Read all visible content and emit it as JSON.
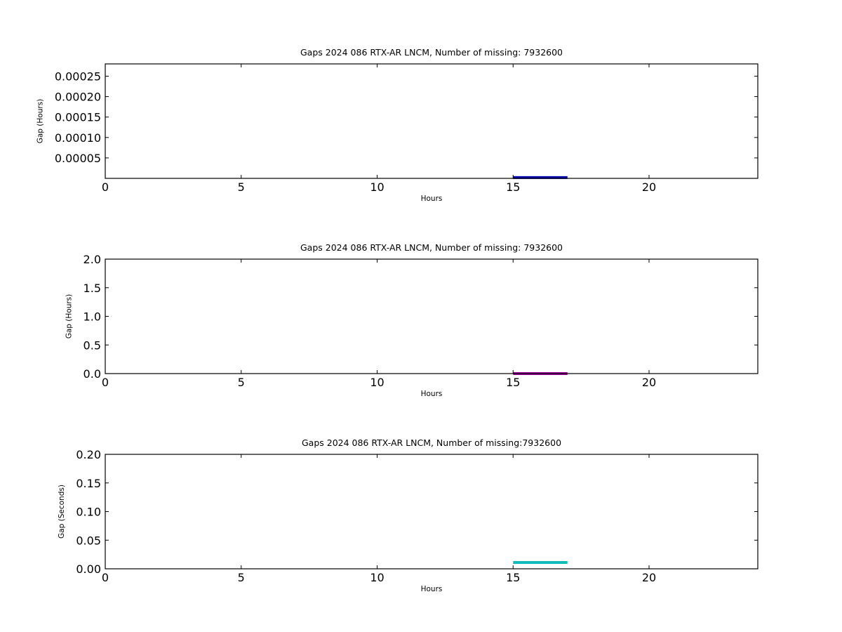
{
  "chart_data": [
    {
      "type": "line",
      "title": "Gaps 2024 086 RTX-AR  LNCM, Number of missing: 7932600",
      "xlabel": "Hours",
      "ylabel": "Gap (Hours)",
      "xlim": [
        0,
        24
      ],
      "ylim": [
        0,
        0.00028
      ],
      "xticks": [
        0,
        5,
        10,
        15,
        20
      ],
      "xtick_labels": [
        "0",
        "5",
        "10",
        "15",
        "20"
      ],
      "yticks": [
        5e-05,
        0.0001,
        0.00015,
        0.0002,
        0.00025
      ],
      "ytick_labels": [
        "0.00005",
        "0.00010",
        "0.00015",
        "0.00020",
        "0.00025"
      ],
      "grid": false,
      "series": [
        {
          "color": "#0000aa",
          "x": [
            15.0,
            17.0
          ],
          "y": [
            2e-06,
            2e-06
          ]
        }
      ]
    },
    {
      "type": "line",
      "title": "Gaps 2024 086 RTX-AR  LNCM, Number of missing: 7932600",
      "xlabel": "Hours",
      "ylabel": "Gap (Hours)",
      "xlim": [
        0,
        24
      ],
      "ylim": [
        0,
        2.0
      ],
      "xticks": [
        0,
        5,
        10,
        15,
        20
      ],
      "xtick_labels": [
        "0",
        "5",
        "10",
        "15",
        "20"
      ],
      "yticks": [
        0.0,
        0.5,
        1.0,
        1.5,
        2.0
      ],
      "ytick_labels": [
        "0.0",
        "0.5",
        "1.0",
        "1.5",
        "2.0"
      ],
      "grid": false,
      "series": [
        {
          "color": "#990099",
          "x": [
            15.0,
            17.0
          ],
          "y": [
            0.0,
            0.0
          ]
        }
      ]
    },
    {
      "type": "line",
      "title": "Gaps 2024 086 RTX-AR  LNCM, Number of missing:7932600",
      "xlabel": "Hours",
      "ylabel": "Gap (Seconds)",
      "xlim": [
        0,
        24
      ],
      "ylim": [
        0,
        0.2
      ],
      "xticks": [
        0,
        5,
        10,
        15,
        20
      ],
      "xtick_labels": [
        "0",
        "5",
        "10",
        "15",
        "20"
      ],
      "yticks": [
        0.0,
        0.05,
        0.1,
        0.15,
        0.2
      ],
      "ytick_labels": [
        "0.00",
        "0.05",
        "0.10",
        "0.15",
        "0.20"
      ],
      "grid": false,
      "series": [
        {
          "color": "#11bbbb",
          "x": [
            15.0,
            17.0
          ],
          "y": [
            0.011,
            0.011
          ]
        }
      ]
    }
  ]
}
